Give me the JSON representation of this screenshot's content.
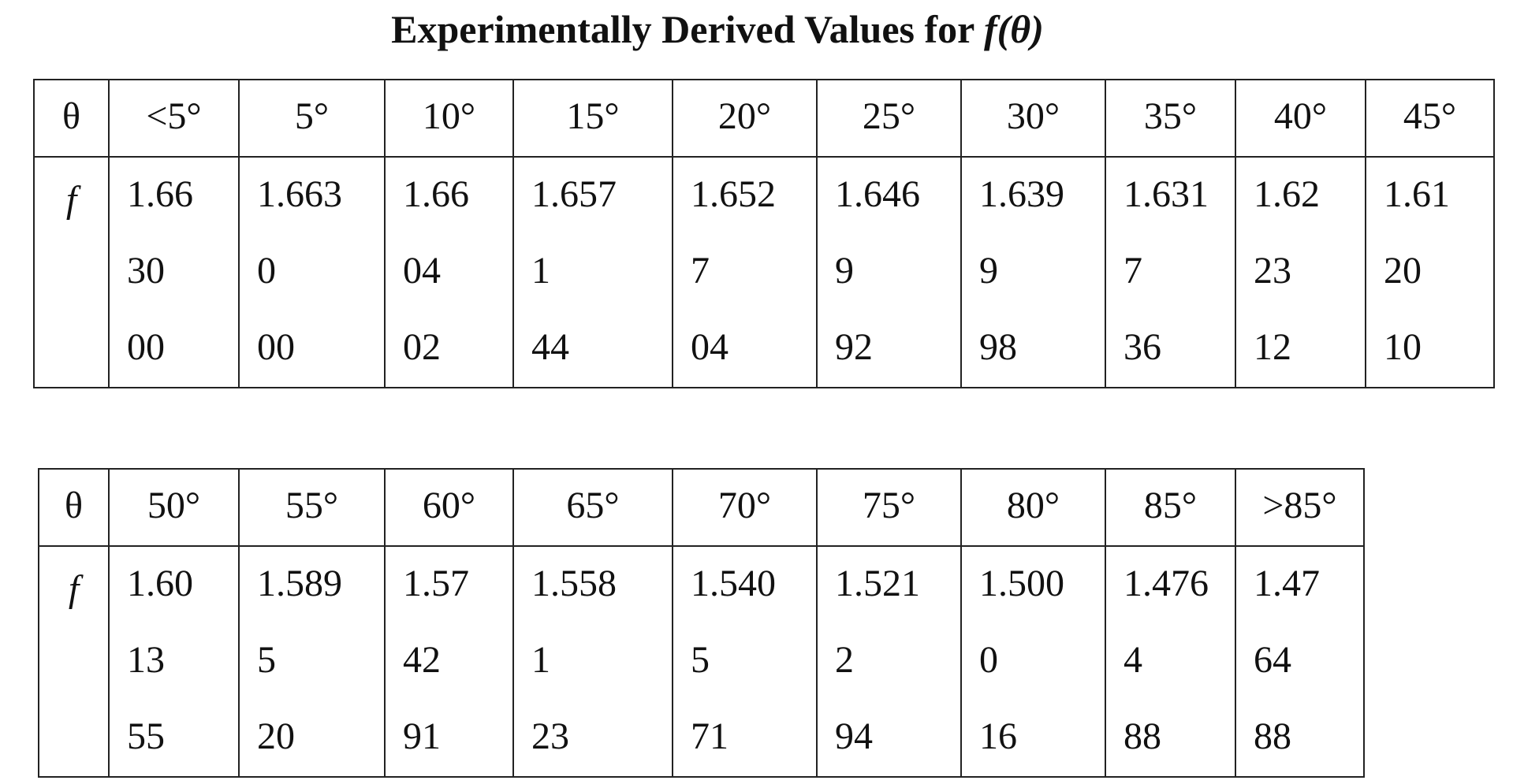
{
  "title": {
    "prefix": "Experimentally Derived Values for ",
    "function": "f(θ)"
  },
  "tables": [
    {
      "theta_label": "θ",
      "f_label": "f",
      "headers": [
        "<5°",
        "5°",
        "10°",
        "15°",
        "20°",
        "25°",
        "30°",
        "35°",
        "40°",
        "45°"
      ],
      "values": [
        [
          "1.66",
          "30",
          "00"
        ],
        [
          "1.663",
          "0",
          "00"
        ],
        [
          "1.66",
          "04",
          "02"
        ],
        [
          "1.657",
          "1",
          "44"
        ],
        [
          "1.652",
          "7",
          "04"
        ],
        [
          "1.646",
          "9",
          "92"
        ],
        [
          "1.639",
          "9",
          "98"
        ],
        [
          "1.631",
          "7",
          "36"
        ],
        [
          "1.62",
          "23",
          "12"
        ],
        [
          "1.61",
          "20",
          "10"
        ]
      ]
    },
    {
      "theta_label": "θ",
      "f_label": "f",
      "headers": [
        "50°",
        "55°",
        "60°",
        "65°",
        "70°",
        "75°",
        "80°",
        "85°",
        ">85°"
      ],
      "values": [
        [
          "1.60",
          "13",
          "55"
        ],
        [
          "1.589",
          "5",
          "20"
        ],
        [
          "1.57",
          "42",
          "91"
        ],
        [
          "1.558",
          "1",
          "23"
        ],
        [
          "1.540",
          "5",
          "71"
        ],
        [
          "1.521",
          "2",
          "94"
        ],
        [
          "1.500",
          "0",
          "16"
        ],
        [
          "1.476",
          "4",
          "88"
        ],
        [
          "1.47",
          "64",
          "88"
        ]
      ]
    }
  ]
}
